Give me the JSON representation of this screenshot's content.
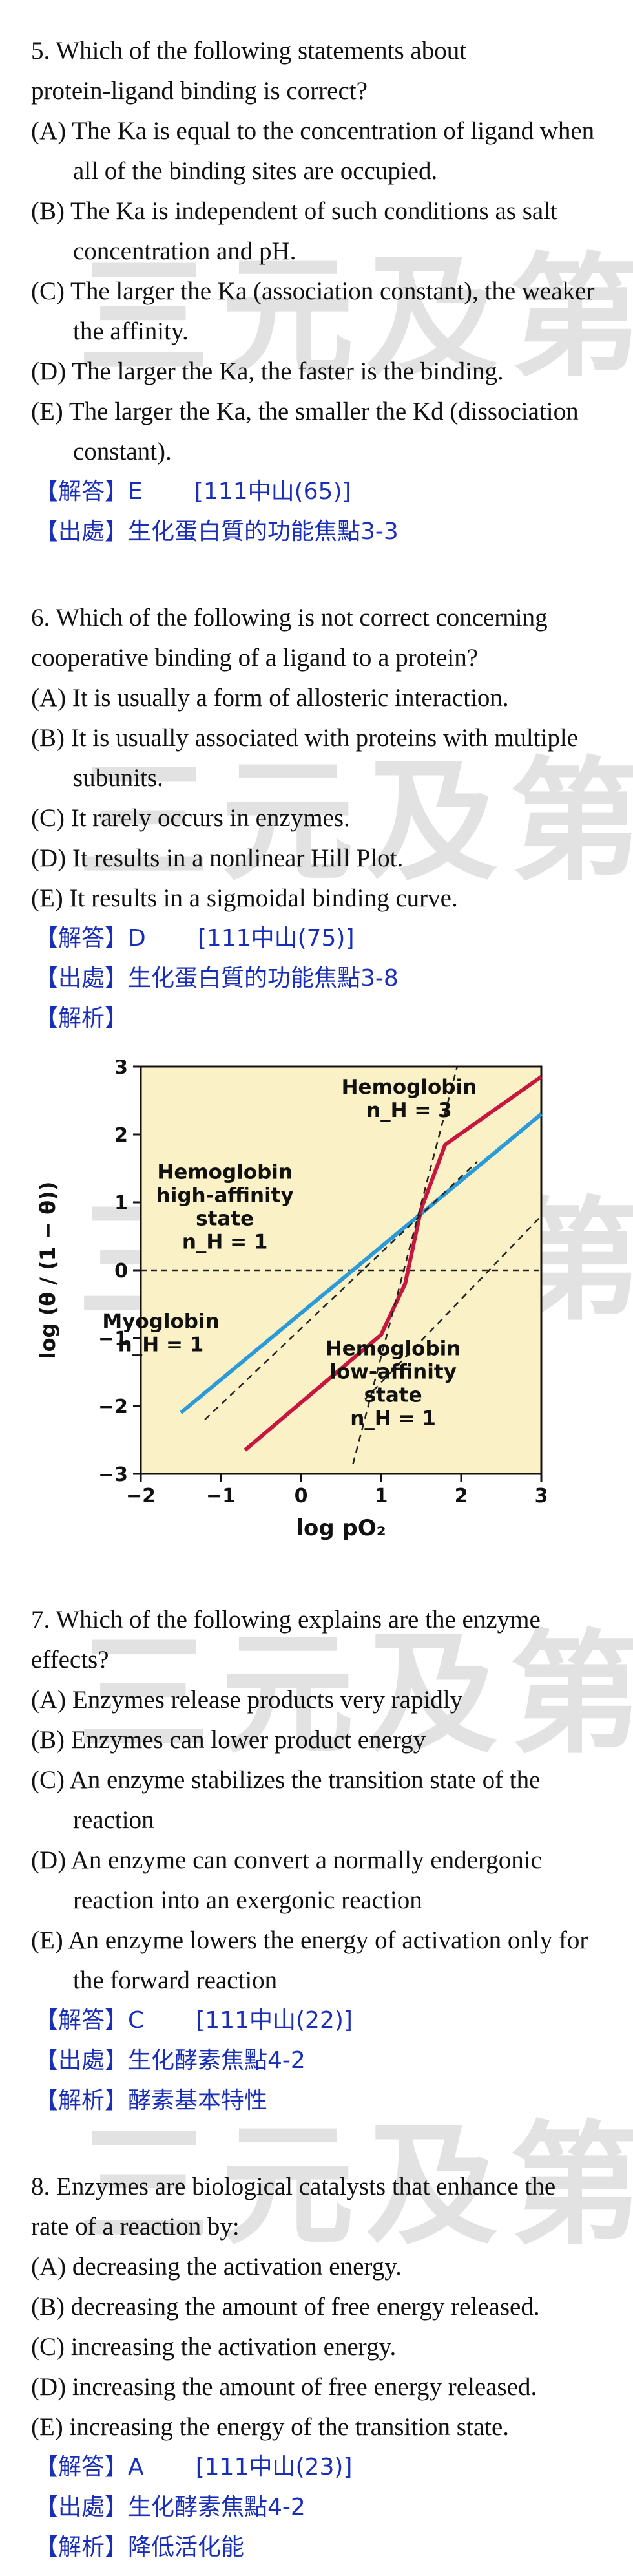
{
  "watermark": "三元及第",
  "questions": [
    {
      "stem": [
        "5. Which of the following statements about",
        "protein-ligand binding is correct?"
      ],
      "options": [
        "(A) The Ka is equal to the concentration of ligand when all of the binding sites are occupied.",
        "(B) The Ka is independent of such conditions as salt concentration and pH.",
        "(C) The larger the Ka (association constant), the weaker the affinity.",
        "(D) The larger the Ka, the faster is the binding.",
        "(E) The larger the Ka, the smaller the Kd (dissociation constant)."
      ],
      "answer": "【解答】E       [111中山(65)]",
      "source": "【出處】生化蛋白質的功能焦點3-3"
    },
    {
      "stem": [
        "6. Which of the following is not correct concerning",
        "cooperative binding of a ligand to a protein?"
      ],
      "options": [
        "(A) It is usually a form of allosteric interaction.",
        "(B) It is usually associated with proteins with multiple subunits.",
        "(C) It rarely occurs in enzymes.",
        "(D) It results in a nonlinear Hill Plot.",
        "(E) It results in a sigmoidal binding curve."
      ],
      "answer": "【解答】D       [111中山(75)]",
      "source": "【出處】生化蛋白質的功能焦點3-8",
      "analysis": "【解析】"
    },
    {
      "stem": [
        "7. Which of the following explains are the enzyme",
        "effects?"
      ],
      "options": [
        "(A) Enzymes release products very rapidly",
        "(B) Enzymes can lower product energy",
        "(C) An enzyme stabilizes the transition state of the reaction",
        "(D) An enzyme can convert a normally endergonic reaction into an exergonic reaction",
        "(E) An enzyme lowers the energy of activation only for the forward reaction"
      ],
      "answer": "【解答】C       [111中山(22)]",
      "source": "【出處】生化酵素焦點4-2",
      "analysis": "【解析】酵素基本特性"
    },
    {
      "stem": [
        "8. Enzymes are biological catalysts that enhance the",
        "rate of a reaction by:"
      ],
      "options": [
        "(A) decreasing the activation energy.",
        "(B) decreasing the amount of free energy released.",
        "(C) increasing the activation energy.",
        "(D) increasing the amount of free energy released.",
        "(E) increasing the energy of the transition state."
      ],
      "answer": "【解答】A       [111中山(23)]",
      "source": "【出處】生化酵素焦點4-2",
      "analysis": "【解析】降低活化能"
    }
  ],
  "chart_data": {
    "type": "line",
    "xlabel": "log pO₂",
    "ylabel": "log (θ / (1 − θ))",
    "xlim": [
      -2,
      3
    ],
    "ylim": [
      -3,
      3
    ],
    "xticks": [
      -2,
      -1,
      0,
      1,
      2,
      3
    ],
    "yticks": [
      -3,
      -2,
      -1,
      0,
      1,
      2,
      3
    ],
    "colors": {
      "background": "#fbf1c7",
      "myoglobin": "#2a9ad8",
      "hemoglobin": "#c8173f",
      "reference": "#222222"
    },
    "series": [
      {
        "name": "Myoglobin n_H = 1",
        "style": "solid",
        "x": [
          -1.5,
          3.0
        ],
        "y": [
          -2.1,
          2.3
        ]
      },
      {
        "name": "Hemoglobin n_H = 3",
        "style": "solid",
        "x": [
          -0.7,
          1.0,
          1.3,
          1.5,
          1.8,
          3.0
        ],
        "y": [
          -2.65,
          -0.95,
          -0.2,
          0.9,
          1.85,
          2.85
        ]
      },
      {
        "name": "Hemoglobin high-affinity state n_H = 1",
        "style": "dashed",
        "x": [
          -1.2,
          2.2
        ],
        "y": [
          -2.2,
          1.6
        ]
      },
      {
        "name": "Hemoglobin low-affinity state n_H = 1",
        "style": "dashed",
        "x": [
          0.8,
          3.0
        ],
        "y": [
          -1.9,
          0.8
        ]
      },
      {
        "name": "Hemoglobin n_H = 3 asymptote",
        "style": "dashed",
        "x": [
          0.65,
          1.95
        ],
        "y": [
          -2.85,
          3.0
        ]
      }
    ],
    "annotations": [
      {
        "lines": [
          "Hemoglobin",
          "n_H = 3"
        ],
        "x": 1.35,
        "y": 2.6
      },
      {
        "lines": [
          "Hemoglobin",
          "high-affinity",
          "state",
          "n_H = 1"
        ],
        "x": -0.95,
        "y": 1.35
      },
      {
        "lines": [
          "Myoglobin",
          "n_H = 1"
        ],
        "x": -1.75,
        "y": -0.85
      },
      {
        "lines": [
          "Hemoglobin",
          "low-affinity",
          "state",
          "n_H = 1"
        ],
        "x": 1.15,
        "y": -1.25
      }
    ]
  }
}
